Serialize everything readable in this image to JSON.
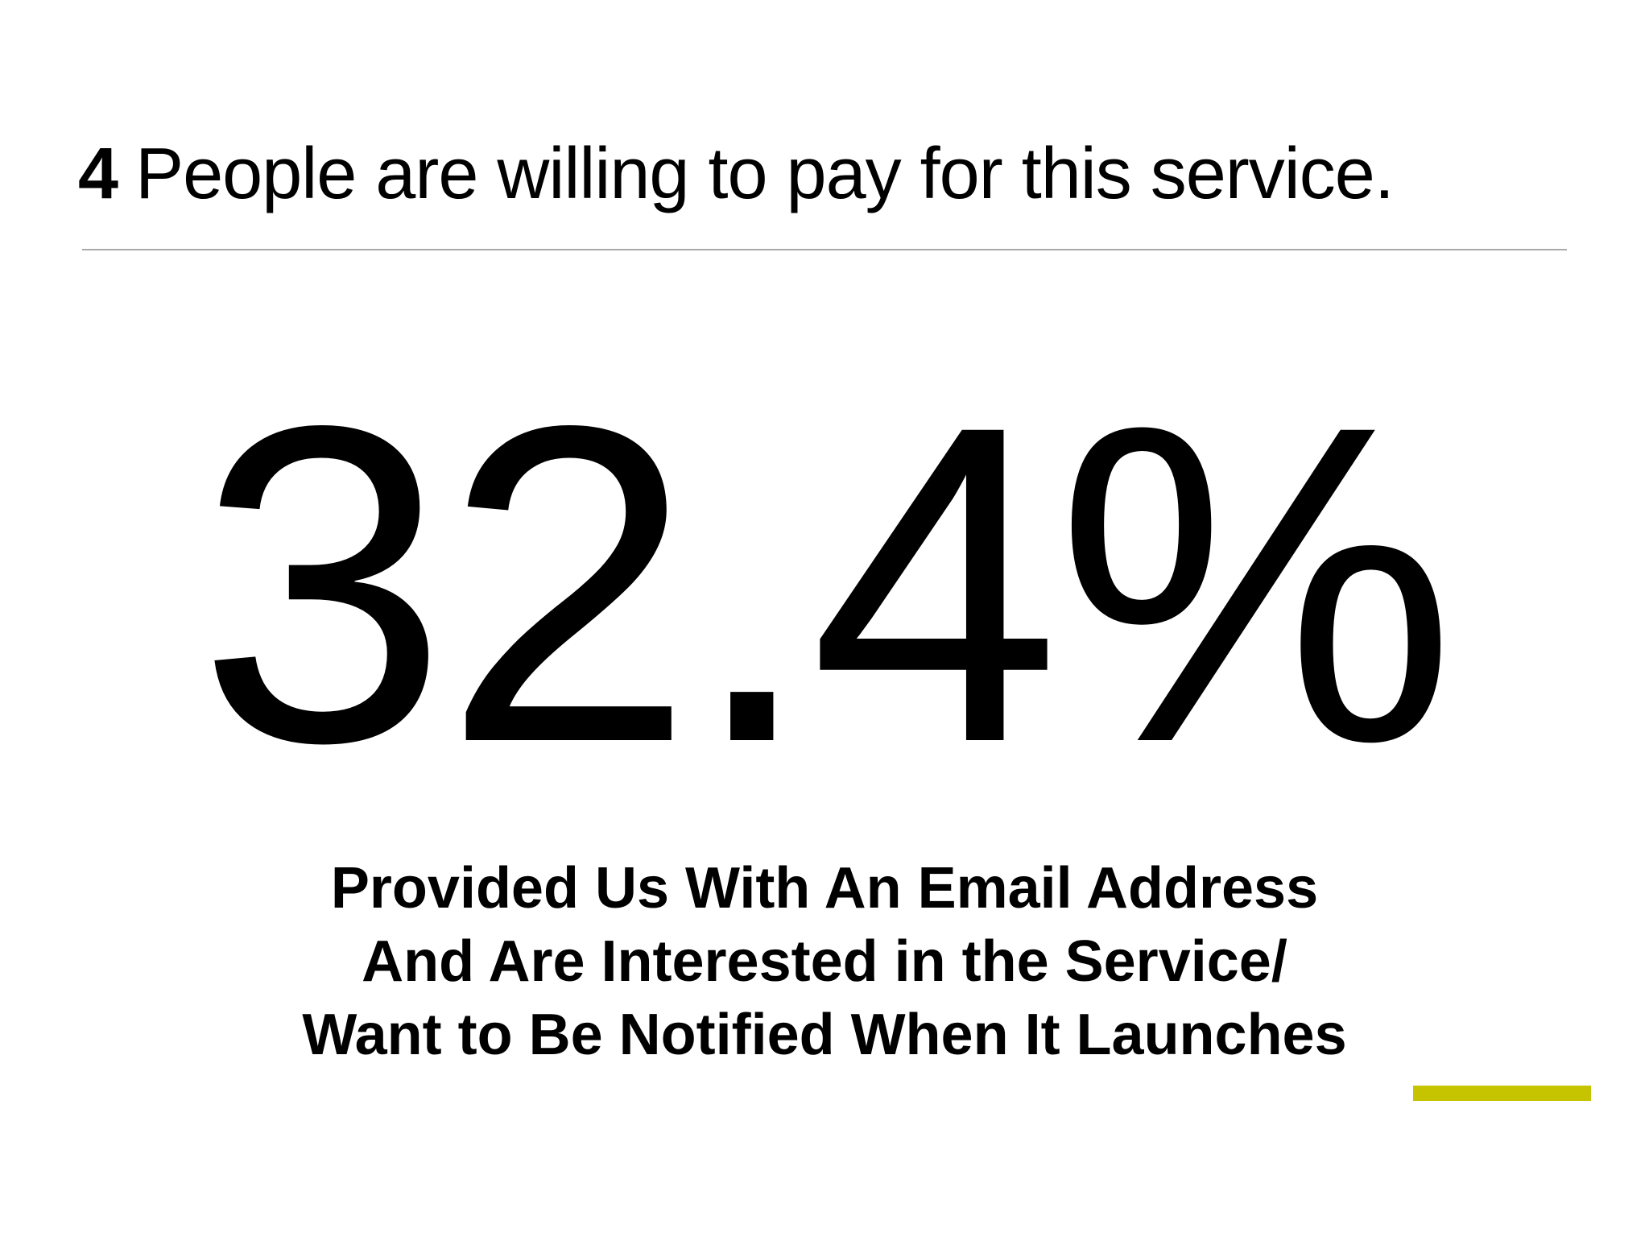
{
  "header": {
    "number": "4",
    "title": "People are willing to pay for this service."
  },
  "stat": {
    "value": "32.4%",
    "caption": "Provided Us With An Email Address And Are Interested in the Service/ Want to Be Notified When It Launches"
  }
}
